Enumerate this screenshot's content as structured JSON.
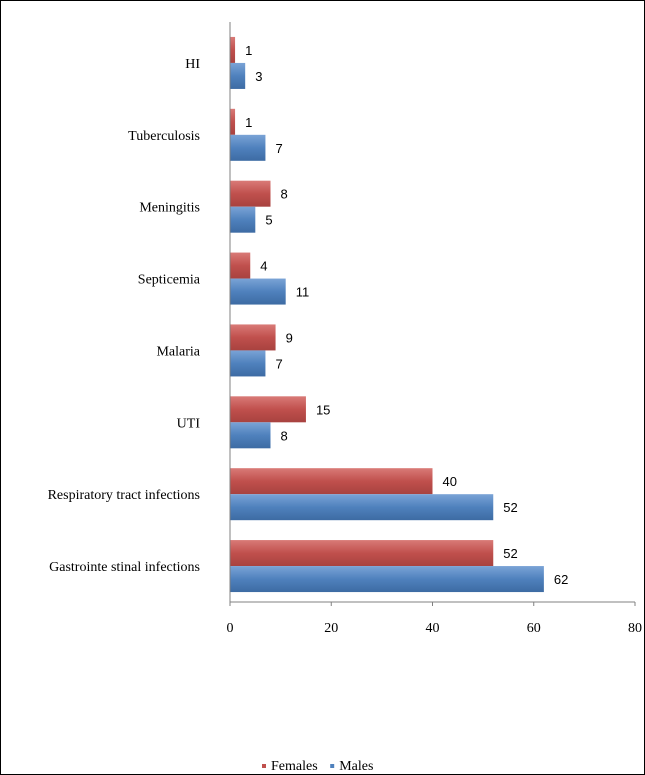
{
  "chart_data": {
    "type": "bar",
    "orientation": "horizontal",
    "categories": [
      "HI",
      "Tuberculosis",
      "Meningitis",
      "Septicemia",
      "Malaria",
      "UTI",
      "Respiratory  tract  infections",
      "Gastrointe stinal  infections"
    ],
    "series": [
      {
        "name": "Females",
        "color": "#c0504d",
        "values": [
          1,
          1,
          8,
          4,
          9,
          15,
          40,
          52
        ]
      },
      {
        "name": "Males",
        "color": "#4f81bd",
        "values": [
          3,
          7,
          5,
          11,
          7,
          8,
          52,
          62
        ]
      }
    ],
    "xlim": [
      0,
      80
    ],
    "xticks": [
      0,
      20,
      40,
      60,
      80
    ],
    "grid": false,
    "legend": "bottom",
    "title": "",
    "xlabel": "",
    "ylabel": ""
  }
}
